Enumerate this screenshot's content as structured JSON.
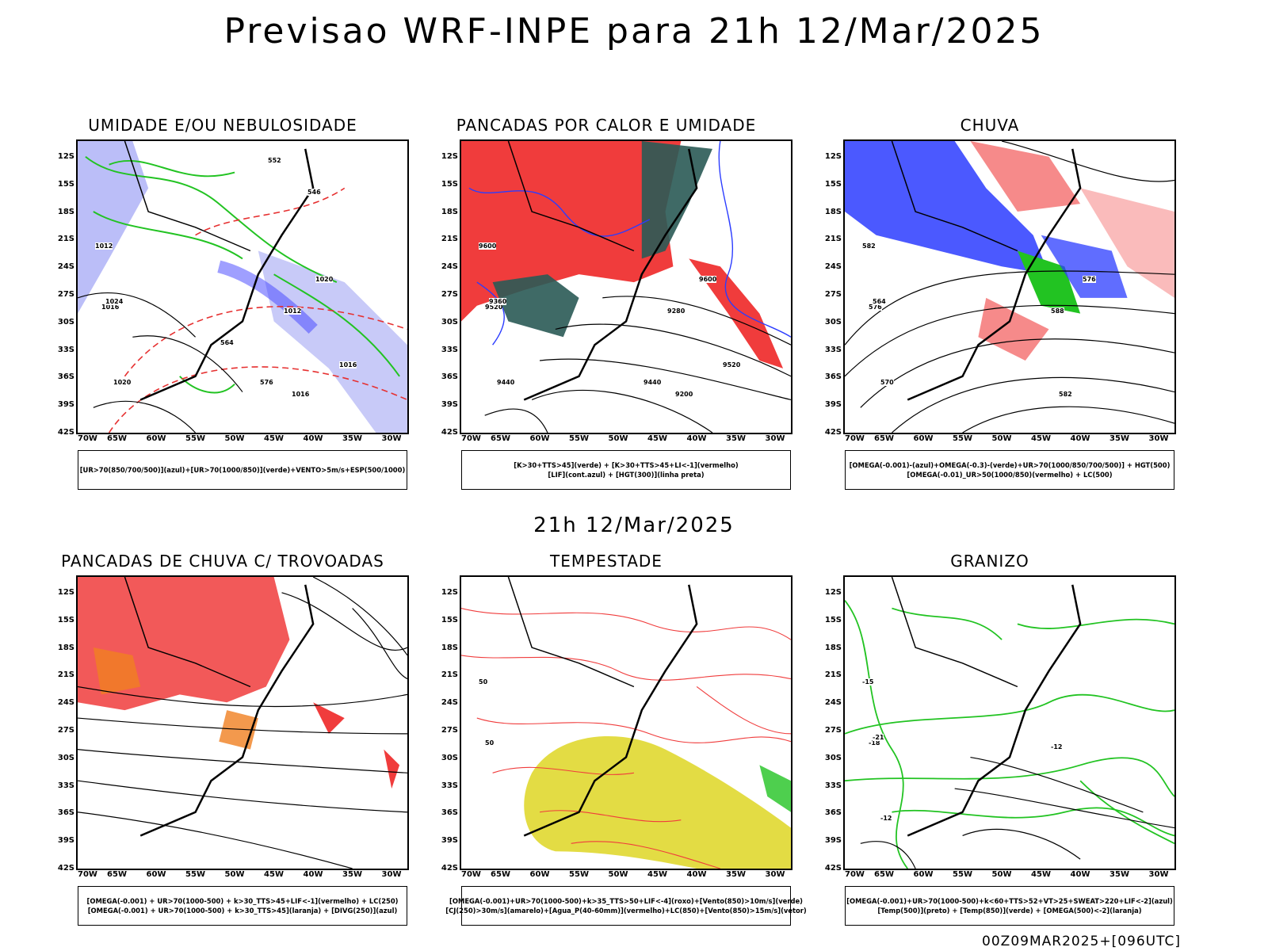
{
  "header": {
    "title": "Previsao WRF-INPE  para 21h 12/Mar/2025"
  },
  "middle": {
    "label": "21h 12/Mar/2025"
  },
  "footer": {
    "run": "00Z09MAR2025+[096UTC]"
  },
  "axes": {
    "lat": [
      "12S",
      "15S",
      "18S",
      "21S",
      "24S",
      "27S",
      "30S",
      "33S",
      "36S",
      "39S",
      "42S"
    ],
    "lon": [
      "70W",
      "65W",
      "60W",
      "55W",
      "50W",
      "45W",
      "40W",
      "35W",
      "30W"
    ]
  },
  "panels": [
    {
      "title": "UMIDADE E/OU NEBULOSIDADE",
      "legend": [
        "[UR>70(850/700/500)](azul)+[UR>70(1000/850)](verde)+VENTO>5m/s+ESP(500/1000)"
      ],
      "labels": [
        "1012",
        "1016",
        "1020",
        "1024",
        "1012",
        "1016",
        "1020",
        "1016",
        "576",
        "564",
        "552",
        "546"
      ]
    },
    {
      "title": "PANCADAS POR CALOR E UMIDADE",
      "legend": [
        "[K>30+TTS>45](verde) + [K>30+TTS>45+LI<-1](vermelho)",
        "[LIF](cont.azul) + [HGT(300)](linha preta)"
      ],
      "labels": [
        "9600",
        "9520",
        "9440",
        "9360",
        "9280",
        "9200",
        "9600",
        "9520",
        "9440"
      ]
    },
    {
      "title": "CHUVA",
      "legend": [
        "[OMEGA(-0.001)-(azul)+OMEGA(-0.3)-(verde)+UR>70(1000/850/700/500)] + HGT(500)",
        "[OMEGA(-0.01)_UR>50(1000/850)(vermelho) + LC(500)"
      ],
      "labels": [
        "582",
        "576",
        "570",
        "564",
        "588",
        "582",
        "576"
      ]
    },
    {
      "title": "PANCADAS DE CHUVA C/ TROVOADAS",
      "legend": [
        "[OMEGA(-0.001) + UR>70(1000-500) + k>30_TTS>45+LIF<-1](vermelho) + LC(250)",
        "[OMEGA(-0.001) + UR>70(1000-500) + k>30_TTS>45](laranja) + [DIVG(250)](azul)"
      ],
      "labels": []
    },
    {
      "title": "TEMPESTADE",
      "legend": [
        "[OMEGA(-0.001)+UR>70(1000-500)+k>35_TTS>50+LIF<-4](roxo)+[Vento(850)>10m/s](verde)",
        "[CJ(250)>30m/s](amarelo)+[Agua_P(40-60mm)](vermelho)+LC(850)+[Vento(850)>15m/s](vetor)"
      ],
      "labels": [
        "50",
        "50"
      ]
    },
    {
      "title": "GRANIZO",
      "legend": [
        "[OMEGA(-0.001)+UR>70(1000-500)+k<60+TTS>52+VT>25+SWEAT>220+LIF<-2](azul)",
        "[Temp(500)](preto) + [Temp(850)](verde) + [OMEGA(500)<-2](laranja)"
      ],
      "labels": [
        "-15",
        "-18",
        "-12",
        "-21",
        "-12"
      ]
    }
  ],
  "colors": {
    "blue": "#2b3cff",
    "green": "#22c322",
    "red": "#f03c3c",
    "yellow": "#e0d830",
    "orange": "#f08020",
    "teal": "#2a5a55"
  }
}
